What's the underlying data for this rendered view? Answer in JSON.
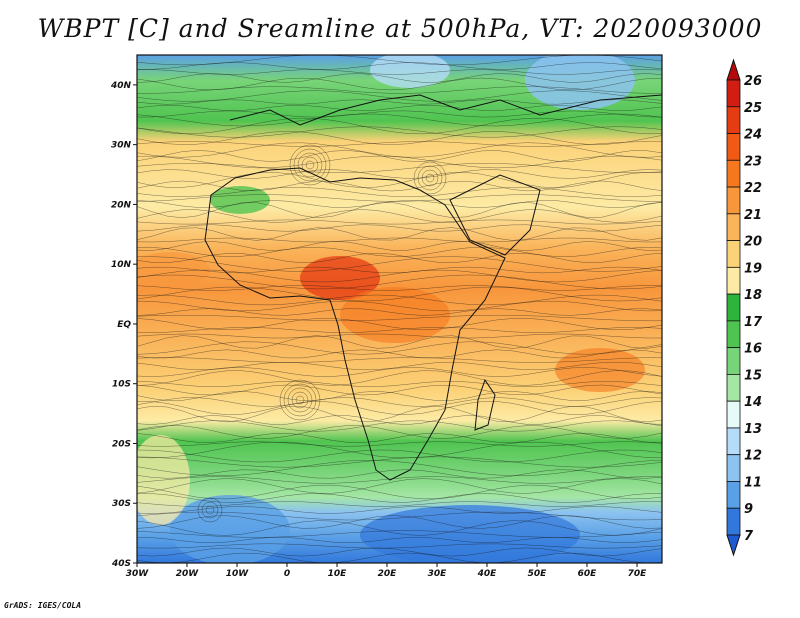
{
  "title": "WBPT [C] and Sreamline at 500hPa, VT: 2020093000",
  "footer": "GrADS: IGES/COLA",
  "map": {
    "lon_range": [
      -30,
      75
    ],
    "lat_range": [
      -40,
      45
    ],
    "lat_ticks": [
      {
        "lat": 40,
        "label": "40N"
      },
      {
        "lat": 30,
        "label": "30N"
      },
      {
        "lat": 20,
        "label": "20N"
      },
      {
        "lat": 10,
        "label": "10N"
      },
      {
        "lat": 0,
        "label": "EQ"
      },
      {
        "lat": -10,
        "label": "10S"
      },
      {
        "lat": -20,
        "label": "20S"
      },
      {
        "lat": -30,
        "label": "30S"
      },
      {
        "lat": -40,
        "label": "40S"
      }
    ],
    "lon_ticks": [
      {
        "lon": -30,
        "label": "30W"
      },
      {
        "lon": -20,
        "label": "20W"
      },
      {
        "lon": -10,
        "label": "10W"
      },
      {
        "lon": 0,
        "label": "0"
      },
      {
        "lon": 10,
        "label": "10E"
      },
      {
        "lon": 20,
        "label": "20E"
      },
      {
        "lon": 30,
        "label": "30E"
      },
      {
        "lon": 40,
        "label": "40E"
      },
      {
        "lon": 50,
        "label": "50E"
      },
      {
        "lon": 60,
        "label": "60E"
      },
      {
        "lon": 70,
        "label": "70E"
      }
    ]
  },
  "colorbar": {
    "labels": [
      "26",
      "25",
      "24",
      "23",
      "22",
      "21",
      "20",
      "19",
      "18",
      "17",
      "16",
      "15",
      "14",
      "13",
      "12",
      "11",
      "9",
      "7"
    ],
    "colors": [
      "#b40a0a",
      "#d21e12",
      "#e63c14",
      "#f05a14",
      "#f5781e",
      "#f8963c",
      "#fab45a",
      "#fcd278",
      "#fdeba5",
      "#2db43c",
      "#50c450",
      "#78d478",
      "#a5e6a5",
      "#e6fafa",
      "#b4dcf8",
      "#8cc3f0",
      "#5aa0e6",
      "#3278dc",
      "#1e5ad2"
    ]
  }
}
